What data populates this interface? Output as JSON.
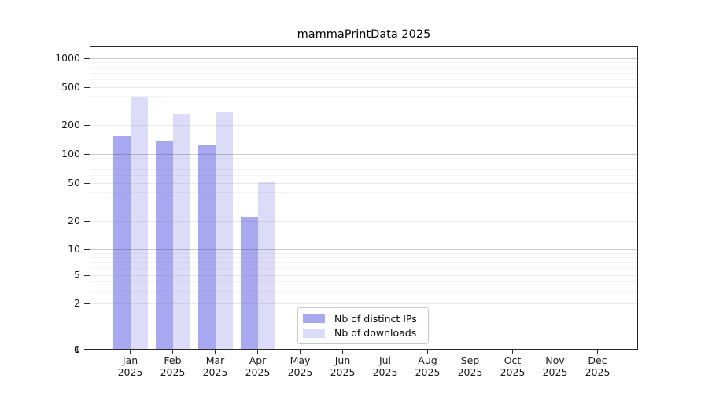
{
  "figure": {
    "title": "mammaPrintData 2025"
  },
  "chart_data": {
    "type": "bar",
    "title": "mammaPrintData 2025",
    "scale": "log-like (0,1,2,5,10,20,50,100,200,500,1000)",
    "grid": true,
    "legend_position": "lower center",
    "categories": [
      "Jan 2025",
      "Feb 2025",
      "Mar 2025",
      "Apr 2025",
      "May 2025",
      "Jun 2025",
      "Jul 2025",
      "Aug 2025",
      "Sep 2025",
      "Oct 2025",
      "Nov 2025",
      "Dec 2025"
    ],
    "month_labels": [
      "Jan",
      "Feb",
      "Mar",
      "Apr",
      "May",
      "Jun",
      "Jul",
      "Aug",
      "Sep",
      "Oct",
      "Nov",
      "Dec"
    ],
    "year_label": "2025",
    "series": [
      {
        "name": "Nb of distinct IPs",
        "color": "#a8a8f0",
        "values": [
          153,
          136,
          122,
          22,
          0,
          0,
          0,
          0,
          0,
          0,
          0,
          0
        ]
      },
      {
        "name": "Nb of downloads",
        "color": "#dcdcf8",
        "values": [
          400,
          263,
          270,
          52,
          0,
          0,
          0,
          0,
          0,
          0,
          0,
          0
        ]
      }
    ],
    "y_ticks": [
      0,
      1,
      2,
      5,
      10,
      20,
      50,
      100,
      200,
      500,
      1000
    ],
    "ylim": [
      0,
      1000
    ]
  }
}
